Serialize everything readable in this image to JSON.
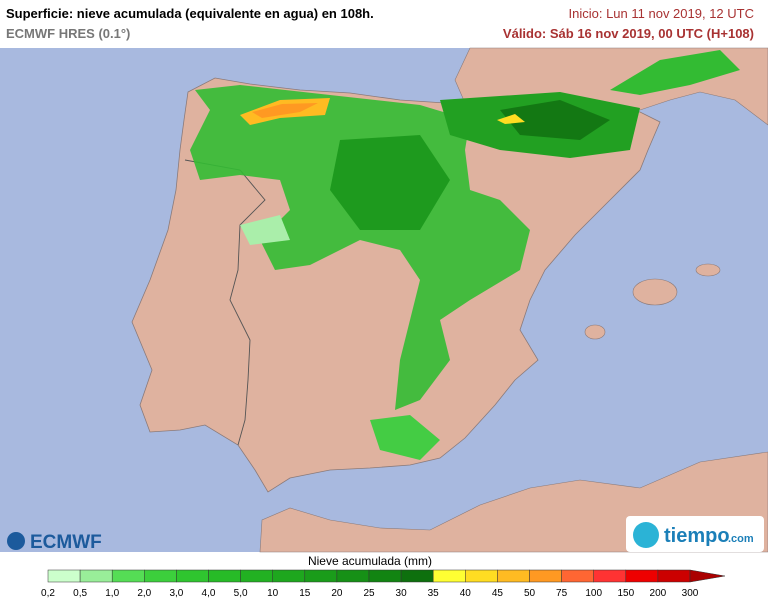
{
  "header": {
    "title": "Superficie: nieve acumulada (equivalente en agua) en 108h.",
    "model": "ECMWF HRES (0.1°)",
    "init": "Inicio: Lun 11 nov 2019, 12 UTC",
    "valid": "Válido: Sáb 16 nov 2019, 00 UTC (H+108)"
  },
  "logos": {
    "left": "ECMWF",
    "right_name": "tiempo",
    "right_domain": ".com"
  },
  "legend": {
    "title": "Nieve acumulada (mm)",
    "ticks": [
      "0,2",
      "0,5",
      "1,0",
      "2,0",
      "3,0",
      "4,0",
      "5,0",
      "10",
      "15",
      "20",
      "25",
      "30",
      "35",
      "40",
      "45",
      "50",
      "75",
      "100",
      "150",
      "200",
      "300"
    ],
    "colors": [
      "#ccffcc",
      "#99ee99",
      "#55dd55",
      "#3ccf3c",
      "#2fc52f",
      "#27bb27",
      "#22b122",
      "#1ea71e",
      "#1a9c1a",
      "#169016",
      "#128412",
      "#0e700e",
      "#ffff33",
      "#ffdd22",
      "#ffbb22",
      "#ff9922",
      "#ff6633",
      "#ff3333",
      "#ee0000",
      "#cc0000",
      "#aa0000"
    ]
  }
}
